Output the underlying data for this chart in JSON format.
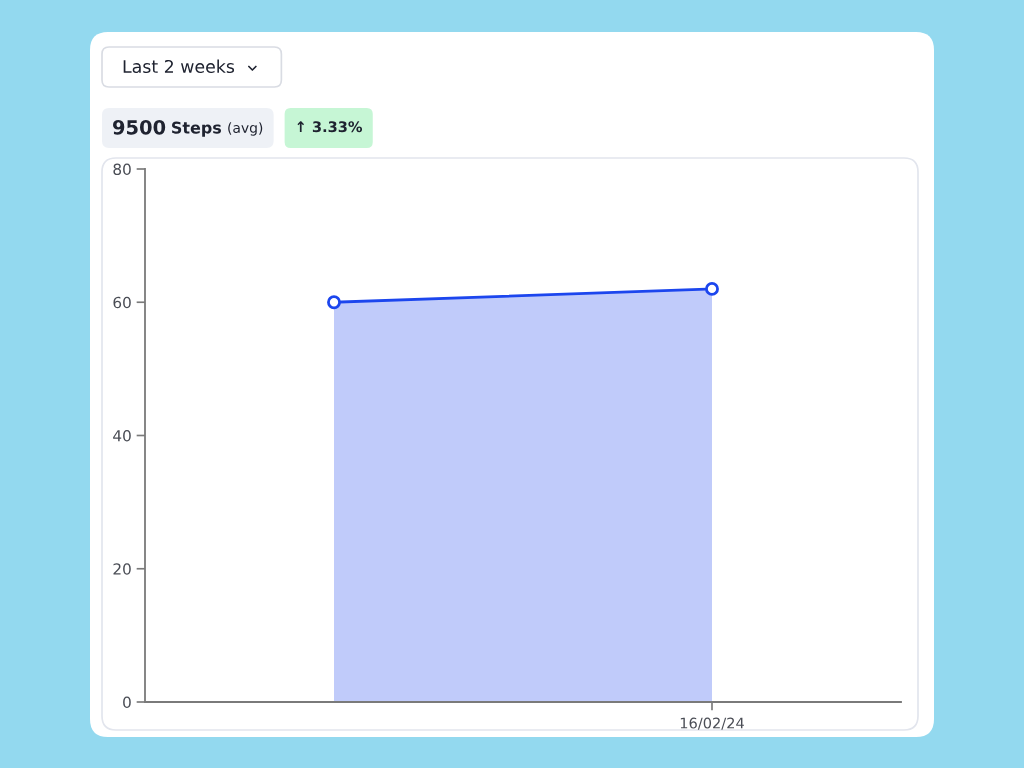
{
  "chart_data": {
    "type": "area",
    "title": "9500 Steps (avg)",
    "subtitle": "Last 2 weeks",
    "annotations": [
      "↑ 3.33%"
    ],
    "categories": [
      null,
      "16/02/24"
    ],
    "series": [
      {
        "color": "#1c46ee",
        "values": [
          60,
          62
        ]
      }
    ],
    "ylim": [
      0,
      80
    ],
    "yticks": [
      0,
      20,
      40,
      60,
      80
    ],
    "marker": "circle",
    "line_style": "solid"
  }
}
